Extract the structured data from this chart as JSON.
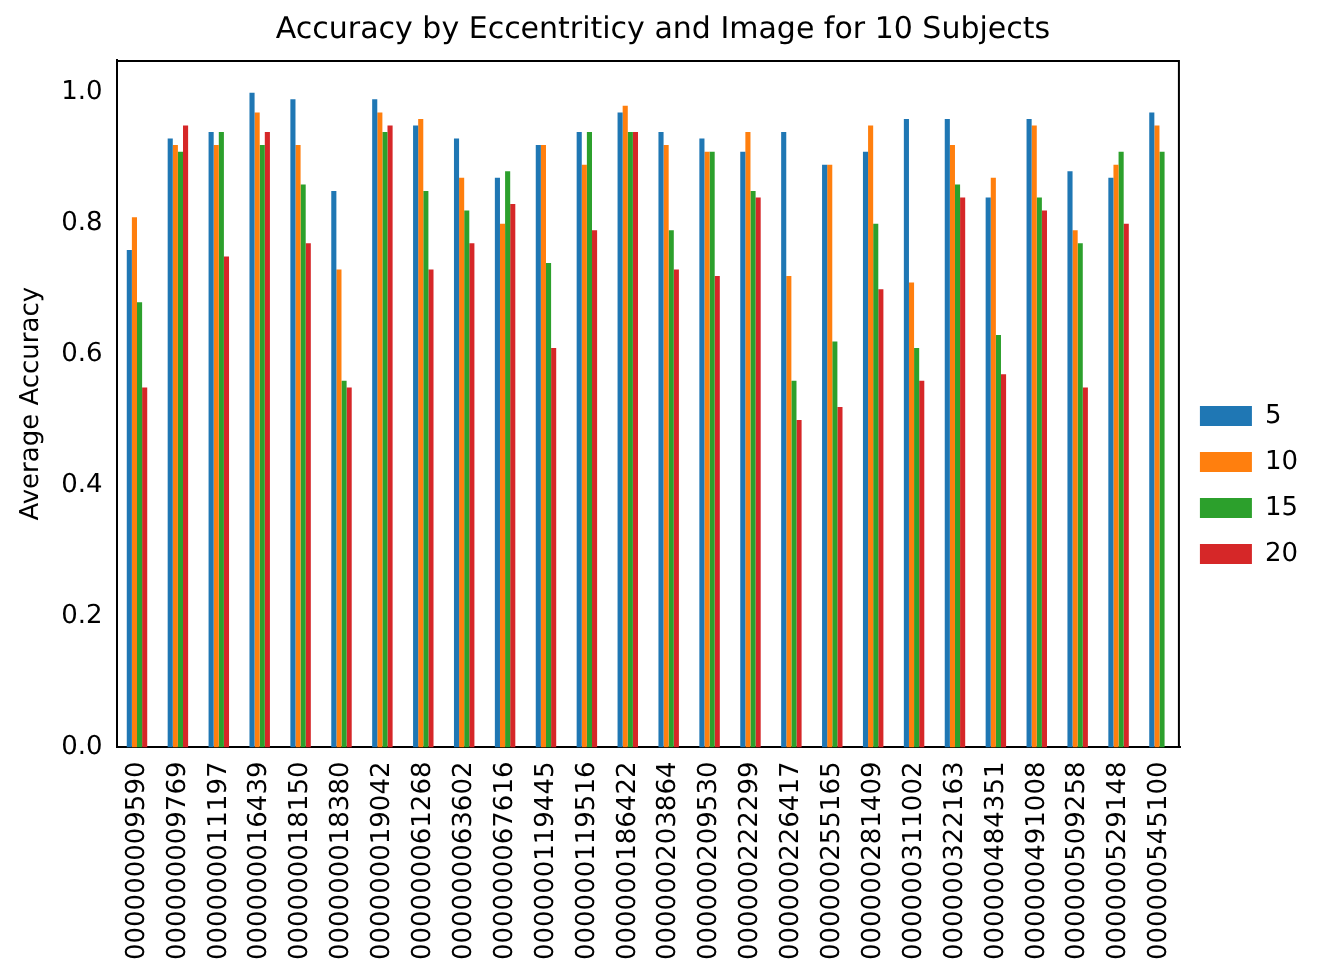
{
  "chart_data": {
    "type": "bar",
    "title": "Accuracy by Eccentriticy and Image for 10 Subjects",
    "ylabel": "Average Accuracy",
    "categories": [
      "000000009590",
      "000000009769",
      "000000011197",
      "000000016439",
      "000000018150",
      "000000018380",
      "000000019042",
      "000000061268",
      "000000063602",
      "000000067616",
      "000000119445",
      "000000119516",
      "000000186422",
      "000000203864",
      "000000209530",
      "000000222299",
      "000000226417",
      "000000255165",
      "000000281409",
      "000000311002",
      "000000322163",
      "000000484351",
      "000000491008",
      "000000509258",
      "000000529148",
      "000000545100"
    ],
    "series": [
      {
        "name": "5",
        "color": "#1f77b4",
        "values": [
          0.76,
          0.93,
          0.94,
          1.0,
          0.99,
          0.85,
          0.99,
          0.95,
          0.93,
          0.87,
          0.92,
          0.94,
          0.97,
          0.94,
          0.93,
          0.91,
          0.94,
          0.89,
          0.91,
          0.96,
          0.96,
          0.84,
          0.96,
          0.88,
          0.87,
          0.97
        ]
      },
      {
        "name": "10",
        "color": "#ff7f0e",
        "values": [
          0.81,
          0.92,
          0.92,
          0.97,
          0.92,
          0.73,
          0.97,
          0.96,
          0.87,
          0.8,
          0.92,
          0.89,
          0.98,
          0.92,
          0.91,
          0.94,
          0.72,
          0.89,
          0.95,
          0.71,
          0.92,
          0.87,
          0.95,
          0.79,
          0.89,
          0.95
        ]
      },
      {
        "name": "15",
        "color": "#2ca02c",
        "values": [
          0.68,
          0.91,
          0.94,
          0.92,
          0.86,
          0.56,
          0.94,
          0.85,
          0.82,
          0.88,
          0.74,
          0.94,
          0.94,
          0.79,
          0.91,
          0.85,
          0.56,
          0.62,
          0.8,
          0.61,
          0.86,
          0.63,
          0.84,
          0.77,
          0.91,
          0.91
        ]
      },
      {
        "name": "20",
        "color": "#d62728",
        "values": [
          0.55,
          0.95,
          0.75,
          0.94,
          0.77,
          0.55,
          0.95,
          0.73,
          0.77,
          0.83,
          0.61,
          0.79,
          0.94,
          0.73,
          0.72,
          0.84,
          0.5,
          0.52,
          0.7,
          0.56,
          0.84,
          0.57,
          0.82,
          0.55,
          0.8,
          null
        ]
      }
    ],
    "ylim": [
      0,
      1.05
    ],
    "yticks": [
      {
        "value": 0,
        "label": "0.0"
      },
      {
        "value": 0.2,
        "label": "0.2"
      },
      {
        "value": 0.4,
        "label": "0.4"
      },
      {
        "value": 0.6,
        "label": "0.6"
      },
      {
        "value": 0.8,
        "label": "0.8"
      },
      {
        "value": 1.0,
        "label": "1.0"
      }
    ],
    "legend": "right"
  }
}
